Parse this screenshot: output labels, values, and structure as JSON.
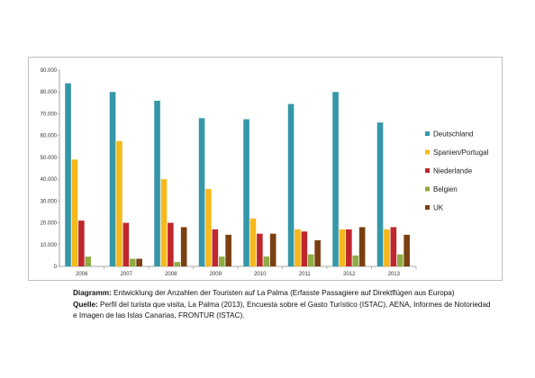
{
  "chart_data": {
    "type": "bar",
    "categories": [
      "2006",
      "2007",
      "2008",
      "2009",
      "2010",
      "2011",
      "2012",
      "2013"
    ],
    "series": [
      {
        "name": "Deutschland",
        "color": "#3597a8",
        "values": [
          84000,
          80000,
          76000,
          68000,
          67500,
          74500,
          80000,
          66000
        ]
      },
      {
        "name": "Spanien/Portugal",
        "color": "#f6b81c",
        "values": [
          49000,
          57500,
          40000,
          35500,
          22000,
          17000,
          17000,
          17000
        ]
      },
      {
        "name": "Niederlande",
        "color": "#c0272d",
        "values": [
          21000,
          20000,
          20000,
          17000,
          15000,
          16000,
          17000,
          18000
        ]
      },
      {
        "name": "Belgien",
        "color": "#8fac45",
        "values": [
          4500,
          3500,
          2000,
          4500,
          4500,
          5500,
          5000,
          5500
        ]
      },
      {
        "name": "UK",
        "color": "#7b3f12",
        "values": [
          null,
          3500,
          18000,
          14500,
          15000,
          12000,
          18000,
          14500
        ]
      }
    ],
    "ylim": [
      0,
      90000
    ],
    "yticks": [
      "0",
      "10.000",
      "20.000",
      "30.000",
      "40.000",
      "50.000",
      "60.000",
      "70.000",
      "80.000",
      "90.000"
    ],
    "grid": false,
    "legend_position": "right"
  },
  "caption": {
    "line1_label": "Diagramm:",
    "line1_text": " Entwicklung der Anzahlen der Touristen auf La Palma (Erfasste Passagiere auf Direktflügen aus Europa)",
    "line2_label": "Quelle:",
    "line2_text": " Perfil del turista que visita, La Palma (2013), Encuesta sobre el Gasto Turístico (ISTAC), AENA, Informes de Notoriedad e Imagen de las Islas Canarias, FRONTUR (ISTAC)."
  }
}
